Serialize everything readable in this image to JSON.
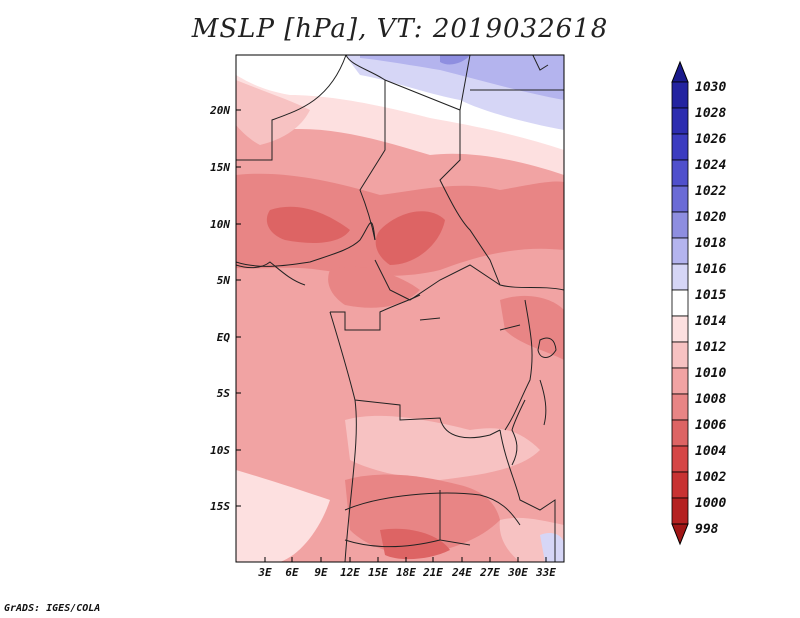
{
  "title": "MSLP [hPa], VT: 2019032618",
  "credit": "GrADS: IGES/COLA",
  "map": {
    "y_ticks": [
      "20N",
      "15N",
      "10N",
      "5N",
      "EQ",
      "5S",
      "10S",
      "15S"
    ],
    "x_ticks": [
      "3E",
      "6E",
      "9E",
      "12E",
      "15E",
      "18E",
      "21E",
      "24E",
      "27E",
      "30E",
      "33E"
    ]
  },
  "colorbar": {
    "levels": [
      "1030",
      "1028",
      "1026",
      "1024",
      "1022",
      "1020",
      "1018",
      "1016",
      "1015",
      "1014",
      "1012",
      "1010",
      "1008",
      "1006",
      "1004",
      "1002",
      "1000",
      "998"
    ],
    "colors": [
      "#1a1a8c",
      "#2323a0",
      "#2d2db0",
      "#3c3cc0",
      "#5050cc",
      "#6b6bd6",
      "#8e8ee0",
      "#b4b4ee",
      "#d6d6f6",
      "#ffffff",
      "#fde0e0",
      "#f7c2c2",
      "#f1a3a3",
      "#e88585",
      "#dd6464",
      "#d54646",
      "#c83232",
      "#b52121",
      "#a11616"
    ]
  }
}
